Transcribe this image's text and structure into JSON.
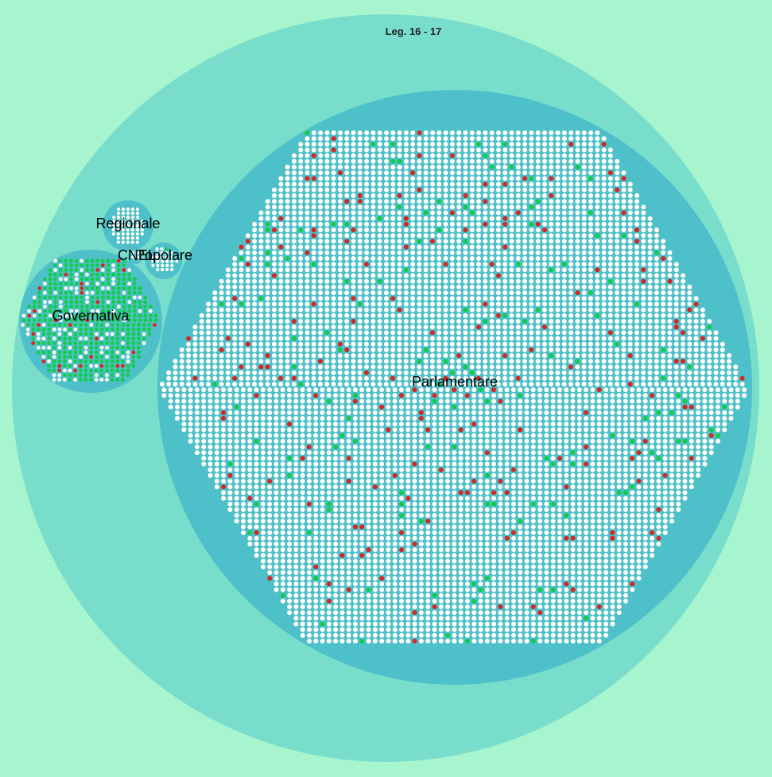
{
  "title": "Leg. 16 - 17",
  "colors": {
    "background": "#a6f5cf",
    "outer_circle": "#79ddcc",
    "group_circle": "#4dc0ca",
    "empty_dot": "#ffffff",
    "dot_stroke": "#59bfbf",
    "green_dot": "#0fcd4a",
    "red_dot": "#d72424"
  },
  "groups": [
    {
      "key": "parlamentare",
      "label": "Parlamentare",
      "total": 6000,
      "green_share": 0.022,
      "red_share": 0.034
    },
    {
      "key": "governativa",
      "label": "Governativa",
      "total": 520,
      "green_share": 0.7,
      "red_share": 0.05
    },
    {
      "key": "regionale",
      "label": "Regionale",
      "total": 55,
      "green_share": 0.0,
      "red_share": 0.0
    },
    {
      "key": "popolare",
      "label": "Popolare",
      "total": 30,
      "green_share": 0.04,
      "red_share": 0.0
    },
    {
      "key": "cnel",
      "label": "CNEL",
      "total": 3,
      "green_share": 0.0,
      "red_share": 0.0
    }
  ]
}
